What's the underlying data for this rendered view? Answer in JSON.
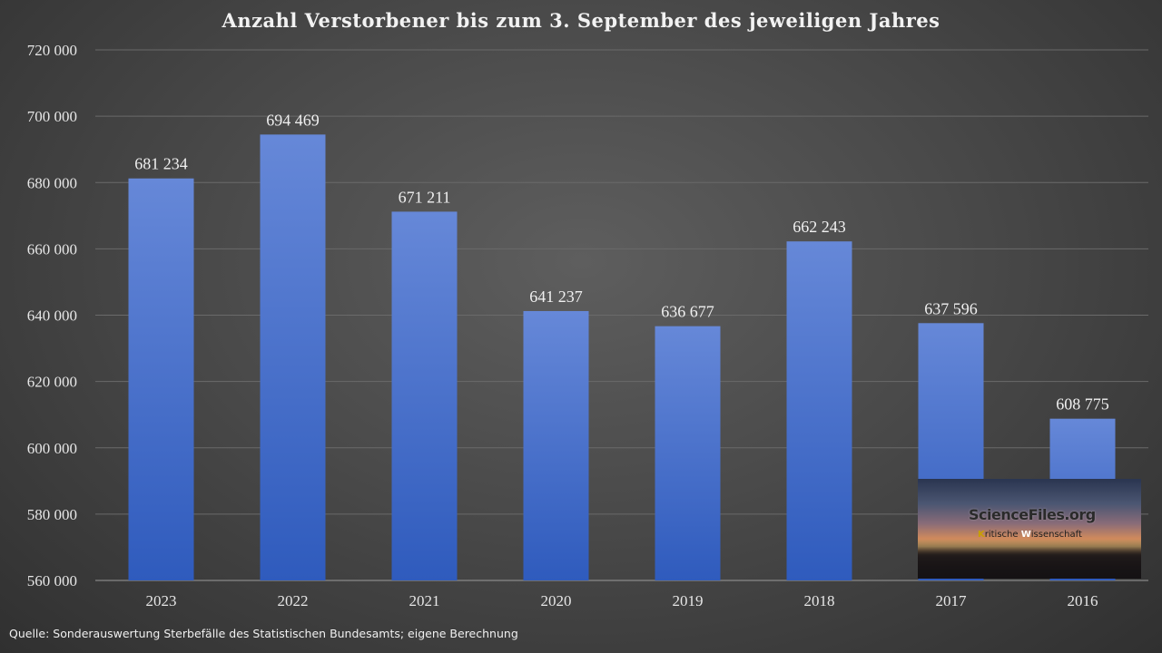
{
  "chart_data": {
    "type": "bar",
    "title": "Anzahl Verstorbener  bis zum 3. September  des jeweiligen Jahres",
    "categories": [
      "2023",
      "2022",
      "2021",
      "2020",
      "2019",
      "2018",
      "2017",
      "2016"
    ],
    "values": [
      681234,
      694469,
      671211,
      641237,
      636677,
      662243,
      637596,
      608775
    ],
    "data_labels": [
      "681 234",
      "694 469",
      "671 211",
      "641 237",
      "636 677",
      "662 243",
      "637 596",
      "608 775"
    ],
    "ylim": [
      560000,
      720000
    ],
    "yticks": [
      560000,
      580000,
      600000,
      620000,
      640000,
      660000,
      680000,
      700000,
      720000
    ],
    "ytick_labels": [
      "560 000",
      "580 000",
      "600 000",
      "620 000",
      "640 000",
      "660 000",
      "680 000",
      "700 000",
      "720 000"
    ],
    "grid": true,
    "bar_color_top": "#6688d8",
    "bar_color_bottom": "#2f5bbd"
  },
  "source": "Quelle: Sonderauswertung Sterbefälle des Statistischen Bundesamts; eigene Berechnung",
  "logo": {
    "title": "ScienceFiles.org",
    "subtitle_parts": [
      "K",
      "ritische ",
      "W",
      "issenschaft"
    ]
  }
}
